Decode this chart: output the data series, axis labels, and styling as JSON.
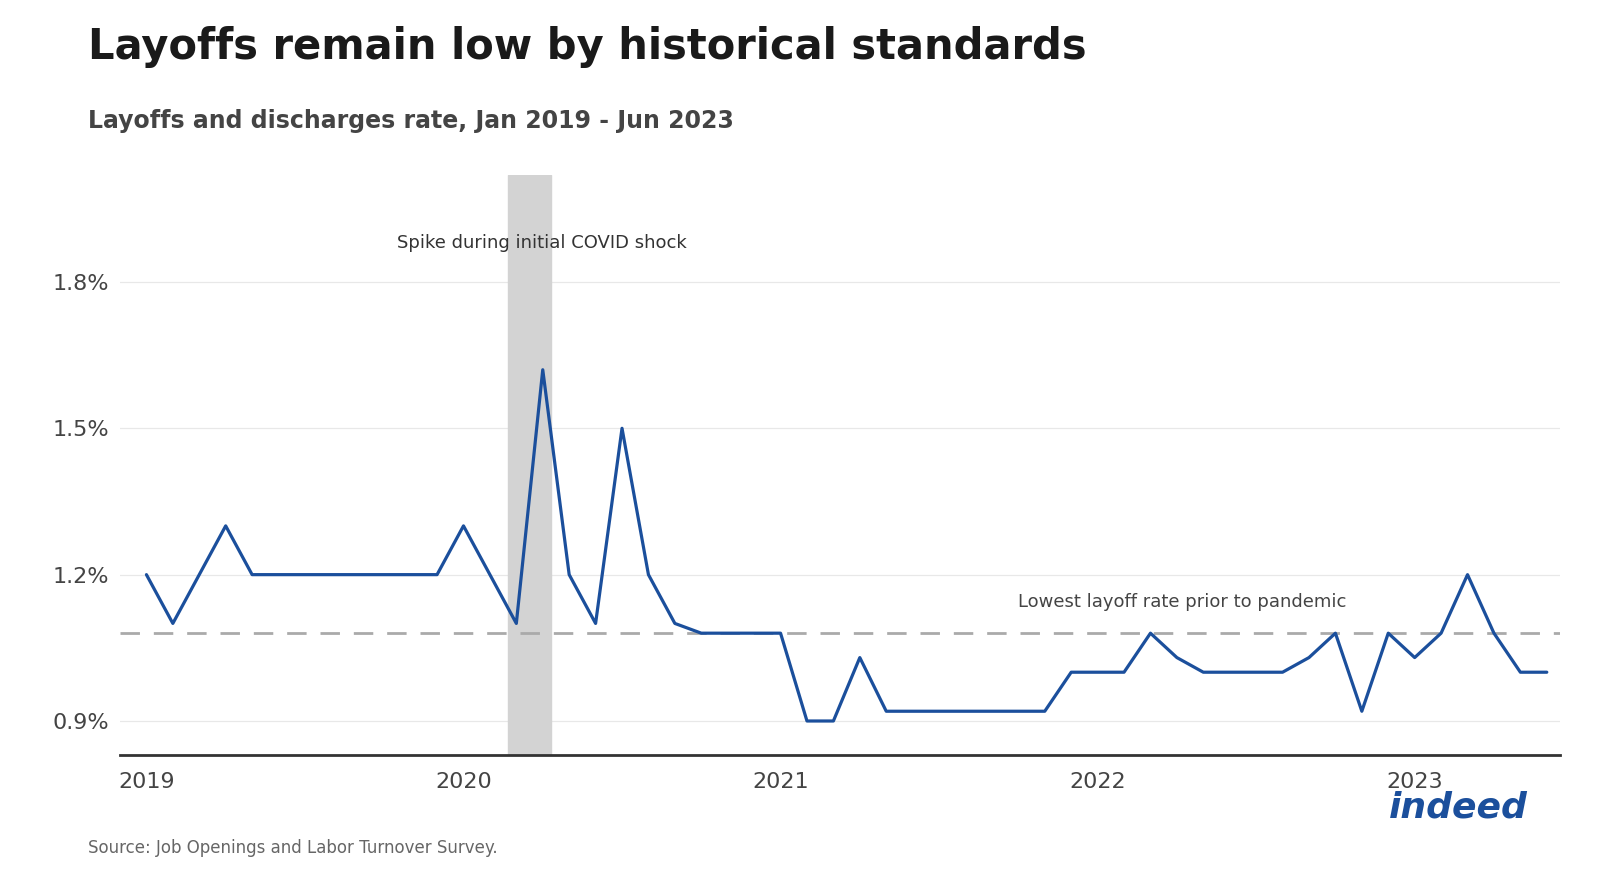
{
  "title": "Layoffs remain low by historical standards",
  "subtitle": "Layoffs and discharges rate, Jan 2019 - Jun 2023",
  "source": "Source: Job Openings and Labor Turnover Survey.",
  "line_color": "#1b4f9c",
  "line_width": 2.3,
  "dashed_line_color": "#aaaaaa",
  "dashed_line_value": 1.08,
  "annotation_covid": "Spike during initial COVID shock",
  "annotation_pandemic": "Lowest layoff rate prior to pandemic",
  "ylim": [
    0.83,
    2.02
  ],
  "yticks": [
    0.9,
    1.2,
    1.5,
    1.8
  ],
  "ytick_labels": [
    "0.9%",
    "1.2%",
    "1.5%",
    "1.8%"
  ],
  "xtick_positions": [
    0,
    12,
    24,
    36,
    48
  ],
  "xtick_labels": [
    "2019",
    "2020",
    "2021",
    "2022",
    "2023"
  ],
  "background_color": "#ffffff",
  "values": [
    1.2,
    1.1,
    1.2,
    1.3,
    1.2,
    1.2,
    1.2,
    1.2,
    1.2,
    1.2,
    1.2,
    1.2,
    1.3,
    1.2,
    1.1,
    1.62,
    1.2,
    1.1,
    1.5,
    1.2,
    1.1,
    1.08,
    1.08,
    1.08,
    1.08,
    0.9,
    0.9,
    1.03,
    0.92,
    0.92,
    0.92,
    0.92,
    0.92,
    0.92,
    0.92,
    1.0,
    1.0,
    1.0,
    1.08,
    1.03,
    1.0,
    1.0,
    1.0,
    1.0,
    1.03,
    1.08,
    0.92,
    1.08,
    1.03,
    1.08,
    1.2,
    1.08,
    1.0,
    1.0
  ],
  "covid_band_start": 13.7,
  "covid_band_end": 15.3,
  "covid_band_color": "#d3d3d3",
  "title_fontsize": 30,
  "subtitle_fontsize": 17,
  "tick_fontsize": 16,
  "annotation_fontsize": 13,
  "indeed_color": "#1b4f9c",
  "indeed_dot_color": "#1b4f9c"
}
